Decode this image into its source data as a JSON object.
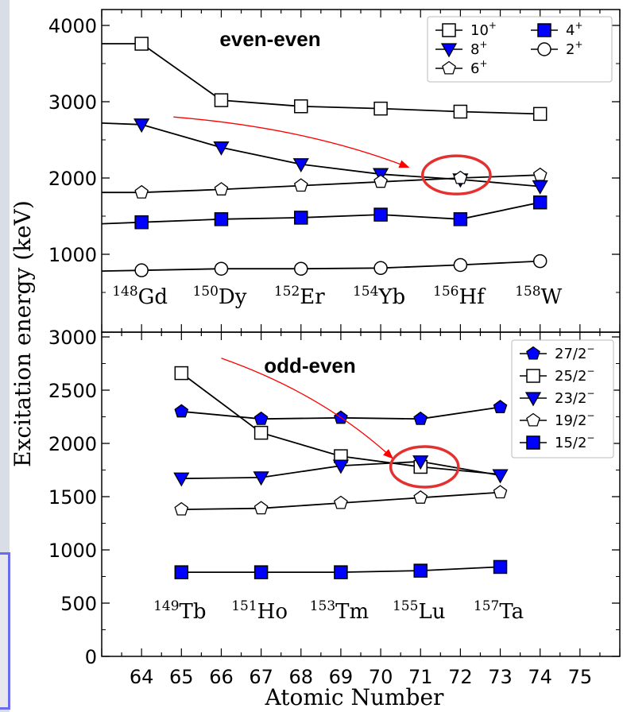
{
  "colors": {
    "marker_fill": "#0000ff",
    "arrow": "#ff0000",
    "circle": "#e53030",
    "line": "#000000"
  },
  "figure": {
    "xlabel": "Atomic Number",
    "ylabel": "Excitation energy (keV)"
  },
  "chart_data": [
    {
      "type": "line",
      "title": "even-even",
      "x_ticks": [
        64,
        65,
        66,
        67,
        68,
        69,
        70,
        71,
        72,
        73,
        74,
        75
      ],
      "x_range": [
        63,
        76
      ],
      "ylim": [
        0,
        4200
      ],
      "y_ticks": [
        1000,
        2000,
        3000,
        4000
      ],
      "y_tick_labels": [
        "1000",
        "2000",
        "3000",
        "4000"
      ],
      "legend_position": "top-right",
      "legend_columns": 2,
      "nuclei": [
        {
          "mass": "148",
          "symbol": "Gd",
          "x": 64
        },
        {
          "mass": "150",
          "symbol": "Dy",
          "x": 66
        },
        {
          "mass": "152",
          "symbol": "Er",
          "x": 68
        },
        {
          "mass": "154",
          "symbol": "Yb",
          "x": 70
        },
        {
          "mass": "156",
          "symbol": "Hf",
          "x": 72
        },
        {
          "mass": "158",
          "symbol": "W",
          "x": 74
        }
      ],
      "series": [
        {
          "name": "10",
          "parity": "+",
          "marker": "square-open",
          "x": [
            63,
            64,
            66,
            68,
            70,
            72,
            74
          ],
          "values": [
            3760,
            3760,
            3020,
            2940,
            2910,
            2870,
            2840
          ],
          "marker_from": 1
        },
        {
          "name": "8",
          "parity": "+",
          "marker": "triangle-filled",
          "x": [
            63,
            64,
            66,
            68,
            70,
            72,
            74
          ],
          "values": [
            2720,
            2700,
            2400,
            2180,
            2050,
            1980,
            1890
          ],
          "marker_from": 1
        },
        {
          "name": "6",
          "parity": "+",
          "marker": "pentagon-open",
          "x": [
            63,
            64,
            66,
            68,
            70,
            72,
            74
          ],
          "values": [
            1810,
            1810,
            1850,
            1900,
            1950,
            2000,
            2040
          ],
          "marker_from": 1
        },
        {
          "name": "4",
          "parity": "+",
          "marker": "square-filled",
          "x": [
            63,
            64,
            66,
            68,
            70,
            72,
            74
          ],
          "values": [
            1400,
            1420,
            1460,
            1480,
            1520,
            1460,
            1680
          ],
          "marker_from": 1
        },
        {
          "name": "2",
          "parity": "+",
          "marker": "circle-open",
          "x": [
            63,
            64,
            66,
            68,
            70,
            72,
            74
          ],
          "values": [
            780,
            790,
            810,
            810,
            820,
            860,
            910
          ],
          "marker_from": 1
        }
      ],
      "legend_order": [
        0,
        3,
        1,
        4,
        2
      ],
      "annotation": {
        "arrow_from": [
          64.8,
          2800
        ],
        "arrow_to": [
          70.7,
          2140
        ],
        "circle_center": [
          71.9,
          2040
        ],
        "circle_rx": 0.85,
        "circle_ry": 250
      }
    },
    {
      "type": "line",
      "title": "odd-even",
      "x_ticks": [
        64,
        65,
        66,
        67,
        68,
        69,
        70,
        71,
        72,
        73,
        74,
        75
      ],
      "x_range": [
        63,
        76
      ],
      "ylim": [
        0,
        3000
      ],
      "y_ticks": [
        0,
        500,
        1000,
        1500,
        2000,
        2500,
        3000
      ],
      "y_tick_labels": [
        "0",
        "500",
        "1000",
        "1500",
        "2000",
        "2500",
        "3000"
      ],
      "legend_position": "top-right",
      "legend_columns": 1,
      "nuclei": [
        {
          "mass": "149",
          "symbol": "Tb",
          "x": 65
        },
        {
          "mass": "151",
          "symbol": "Ho",
          "x": 67
        },
        {
          "mass": "153",
          "symbol": "Tm",
          "x": 69
        },
        {
          "mass": "155",
          "symbol": "Lu",
          "x": 71
        },
        {
          "mass": "157",
          "symbol": "Ta",
          "x": 73
        }
      ],
      "series": [
        {
          "name": "27/2",
          "parity": "−",
          "marker": "pentagon-filled",
          "x": [
            65,
            67,
            69,
            71,
            73
          ],
          "values": [
            2300,
            2230,
            2240,
            2230,
            2340
          ],
          "marker_from": 0
        },
        {
          "name": "25/2",
          "parity": "−",
          "marker": "square-open",
          "x": [
            65,
            67,
            69,
            71,
            73
          ],
          "values": [
            2660,
            2100,
            1880,
            1780,
            1710
          ],
          "marker_from": 0,
          "marker_count": 4
        },
        {
          "name": "23/2",
          "parity": "−",
          "marker": "triangle-filled",
          "x": [
            65,
            67,
            69,
            71,
            73
          ],
          "values": [
            1670,
            1680,
            1790,
            1830,
            1700
          ],
          "marker_from": 0
        },
        {
          "name": "19/2",
          "parity": "−",
          "marker": "pentagon-open",
          "x": [
            65,
            67,
            69,
            71,
            73
          ],
          "values": [
            1380,
            1390,
            1440,
            1490,
            1540
          ],
          "marker_from": 0
        },
        {
          "name": "15/2",
          "parity": "−",
          "marker": "square-filled",
          "x": [
            65,
            67,
            69,
            71,
            73
          ],
          "values": [
            790,
            790,
            790,
            805,
            840
          ],
          "marker_from": 0
        }
      ],
      "legend_order": [
        0,
        1,
        2,
        3,
        4
      ],
      "annotation": {
        "arrow_from": [
          66.0,
          2800
        ],
        "arrow_to": [
          70.3,
          1860
        ],
        "circle_center": [
          71.1,
          1780
        ],
        "circle_rx": 0.85,
        "circle_ry": 190
      }
    }
  ]
}
